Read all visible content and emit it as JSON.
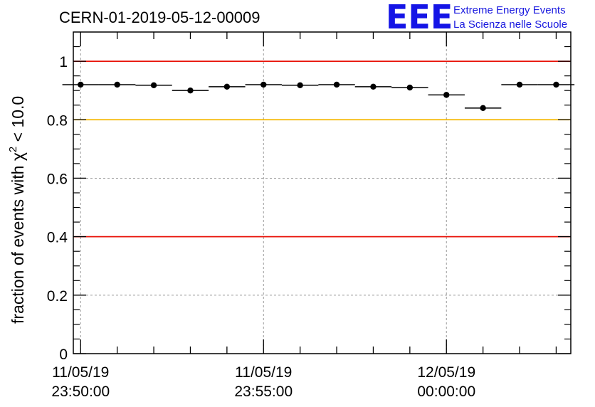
{
  "chart_data": {
    "type": "scatter",
    "title": "CERN-01-2019-05-12-00009",
    "ylabel_main": "fraction of events with χ",
    "ylabel_sup": "2",
    "ylabel_tail": " < 10.0",
    "ylim": [
      0,
      1.1
    ],
    "yticks": [
      0,
      0.2,
      0.4,
      0.6,
      0.8,
      1
    ],
    "ytick_labels": [
      "0",
      "0.2",
      "0.4",
      "0.6",
      "0.8",
      "1"
    ],
    "xlim_minutes": [
      -0.2,
      13.4
    ],
    "xticks": [
      {
        "at": 0,
        "date": "11/05/19",
        "time": "23:50:00"
      },
      {
        "at": 5,
        "date": "11/05/19",
        "time": "23:55:00"
      },
      {
        "at": 10,
        "date": "12/05/19",
        "time": "00:00:00"
      }
    ],
    "bin_width_minutes": 1,
    "x": [
      0,
      1,
      2,
      3,
      4,
      5,
      6,
      7,
      8,
      9,
      10,
      11,
      12,
      13
    ],
    "values": [
      0.92,
      0.92,
      0.918,
      0.9,
      0.913,
      0.92,
      0.918,
      0.92,
      0.913,
      0.91,
      0.885,
      0.84,
      0.92,
      0.92
    ],
    "reference_lines": [
      {
        "y": 1.0,
        "color": "#e8140a"
      },
      {
        "y": 0.8,
        "color": "#f5b800"
      },
      {
        "y": 0.4,
        "color": "#e8140a"
      }
    ],
    "grid": true
  },
  "logo": {
    "big": "EEE",
    "line1": "Extreme Energy Events",
    "line2": "La Scienza nelle Scuole"
  }
}
